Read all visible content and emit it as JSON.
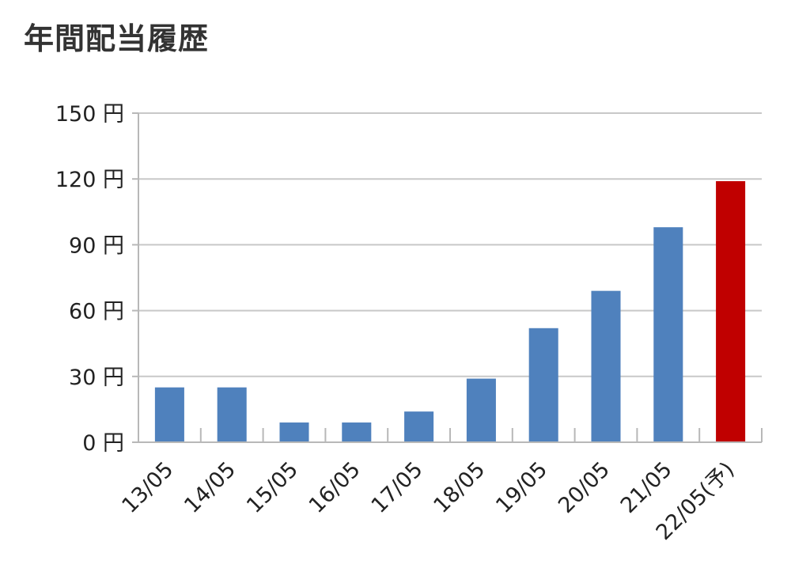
{
  "chart_data": {
    "type": "bar",
    "title": "年間配当履歴",
    "xlabel": "",
    "ylabel": "",
    "categories": [
      "13/05",
      "14/05",
      "15/05",
      "16/05",
      "17/05",
      "18/05",
      "19/05",
      "20/05",
      "21/05",
      "22/05(予)"
    ],
    "values": [
      25,
      25,
      9,
      9,
      14,
      29,
      52,
      69,
      98,
      119
    ],
    "bar_colors": [
      "#4f81bd",
      "#4f81bd",
      "#4f81bd",
      "#4f81bd",
      "#4f81bd",
      "#4f81bd",
      "#4f81bd",
      "#4f81bd",
      "#4f81bd",
      "#c00000"
    ],
    "ylim": [
      0,
      150
    ],
    "yticks": [
      0,
      30,
      60,
      90,
      120,
      150
    ],
    "ytick_labels": [
      "0 円",
      "30 円",
      "60 円",
      "90 円",
      "120 円",
      "150 円"
    ],
    "grid": true,
    "legend": "none"
  }
}
